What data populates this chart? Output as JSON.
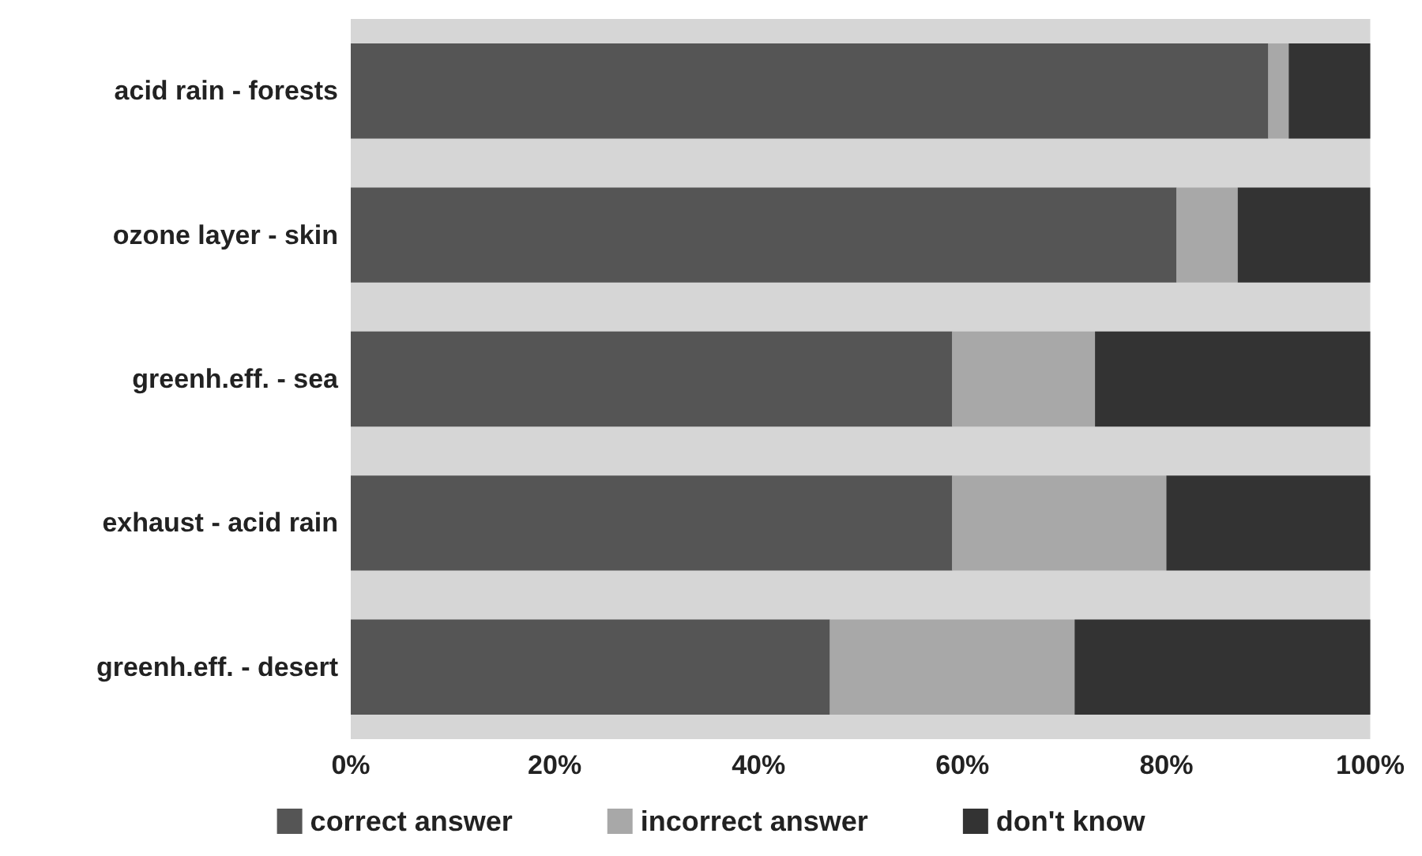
{
  "chart_data": {
    "type": "bar",
    "orientation": "horizontal",
    "stacked": true,
    "categories": [
      "acid rain - forests",
      "ozone layer - skin",
      "greenh.eff. - sea",
      "exhaust - acid rain",
      "greenh.eff. - desert"
    ],
    "series": [
      {
        "name": "correct answer",
        "color": "#555555",
        "values": [
          90,
          81,
          59,
          59,
          47
        ]
      },
      {
        "name": "incorrect answer",
        "color": "#a8a8a8",
        "values": [
          2,
          6,
          14,
          21,
          24
        ]
      },
      {
        "name": "don't know",
        "color": "#333333",
        "values": [
          8,
          13,
          27,
          20,
          29
        ]
      }
    ],
    "xlim": [
      0,
      100
    ],
    "xticks": [
      {
        "value": 0,
        "label": "0%"
      },
      {
        "value": 20,
        "label": "20%"
      },
      {
        "value": 40,
        "label": "40%"
      },
      {
        "value": 60,
        "label": "60%"
      },
      {
        "value": 80,
        "label": "80%"
      },
      {
        "value": 100,
        "label": "100%"
      }
    ],
    "grid": false,
    "legend": "bottom"
  }
}
